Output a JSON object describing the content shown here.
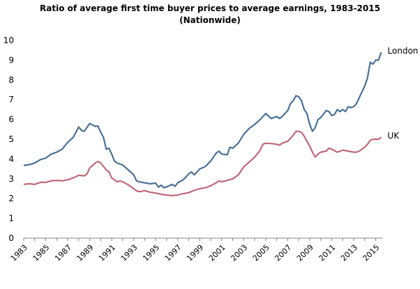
{
  "chart_data": {
    "type": "line",
    "title": "Ratio of average first time buyer prices to average earnings, 1983-2015",
    "subtitle": "(Nationwide)",
    "xlabel": "",
    "ylabel": "",
    "xlim": [
      1983,
      2015.6
    ],
    "ylim": [
      0,
      10
    ],
    "y_ticks": [
      0,
      1,
      2,
      3,
      4,
      5,
      6,
      7,
      8,
      9,
      10
    ],
    "x_ticks": [
      "1983",
      "1985",
      "1987",
      "1989",
      "1991",
      "1993",
      "1995",
      "1997",
      "1999",
      "2001",
      "2003",
      "2005",
      "2007",
      "2009",
      "2011",
      "2013",
      "2015"
    ],
    "grid": false,
    "legend": "inline labels at line ends",
    "series": [
      {
        "name": "London",
        "color": "#4a7196",
        "points": [
          [
            1983.0,
            3.68
          ],
          [
            1983.5,
            3.72
          ],
          [
            1984.0,
            3.8
          ],
          [
            1984.5,
            3.97
          ],
          [
            1985.0,
            4.05
          ],
          [
            1985.5,
            4.25
          ],
          [
            1986.0,
            4.35
          ],
          [
            1986.5,
            4.5
          ],
          [
            1987.0,
            4.85
          ],
          [
            1987.5,
            5.1
          ],
          [
            1988.0,
            5.62
          ],
          [
            1988.25,
            5.45
          ],
          [
            1988.5,
            5.4
          ],
          [
            1989.0,
            5.8
          ],
          [
            1989.5,
            5.65
          ],
          [
            1989.75,
            5.67
          ],
          [
            1990.0,
            5.35
          ],
          [
            1990.25,
            5.1
          ],
          [
            1990.5,
            4.5
          ],
          [
            1990.75,
            4.55
          ],
          [
            1991.0,
            4.25
          ],
          [
            1991.25,
            3.9
          ],
          [
            1991.5,
            3.8
          ],
          [
            1992.0,
            3.7
          ],
          [
            1992.5,
            3.45
          ],
          [
            1993.0,
            3.2
          ],
          [
            1993.25,
            2.9
          ],
          [
            1993.5,
            2.85
          ],
          [
            1994.0,
            2.8
          ],
          [
            1994.5,
            2.75
          ],
          [
            1995.0,
            2.78
          ],
          [
            1995.25,
            2.58
          ],
          [
            1995.5,
            2.68
          ],
          [
            1995.75,
            2.55
          ],
          [
            1996.0,
            2.6
          ],
          [
            1996.5,
            2.72
          ],
          [
            1996.75,
            2.62
          ],
          [
            1997.0,
            2.8
          ],
          [
            1997.5,
            2.95
          ],
          [
            1998.0,
            3.25
          ],
          [
            1998.25,
            3.35
          ],
          [
            1998.5,
            3.2
          ],
          [
            1999.0,
            3.5
          ],
          [
            1999.5,
            3.62
          ],
          [
            2000.0,
            3.9
          ],
          [
            2000.5,
            4.3
          ],
          [
            2000.75,
            4.4
          ],
          [
            2001.0,
            4.25
          ],
          [
            2001.5,
            4.22
          ],
          [
            2001.75,
            4.6
          ],
          [
            2002.0,
            4.55
          ],
          [
            2002.5,
            4.8
          ],
          [
            2003.0,
            5.25
          ],
          [
            2003.5,
            5.55
          ],
          [
            2004.0,
            5.75
          ],
          [
            2004.5,
            6.0
          ],
          [
            2005.0,
            6.3
          ],
          [
            2005.5,
            6.05
          ],
          [
            2006.0,
            6.15
          ],
          [
            2006.25,
            6.05
          ],
          [
            2006.5,
            6.15
          ],
          [
            2007.0,
            6.45
          ],
          [
            2007.25,
            6.8
          ],
          [
            2007.5,
            6.95
          ],
          [
            2007.75,
            7.2
          ],
          [
            2008.0,
            7.15
          ],
          [
            2008.25,
            6.95
          ],
          [
            2008.5,
            6.5
          ],
          [
            2008.75,
            6.3
          ],
          [
            2009.0,
            5.75
          ],
          [
            2009.25,
            5.4
          ],
          [
            2009.5,
            5.6
          ],
          [
            2009.75,
            6.0
          ],
          [
            2010.0,
            6.1
          ],
          [
            2010.5,
            6.45
          ],
          [
            2010.75,
            6.4
          ],
          [
            2011.0,
            6.2
          ],
          [
            2011.25,
            6.25
          ],
          [
            2011.5,
            6.5
          ],
          [
            2011.75,
            6.4
          ],
          [
            2012.0,
            6.5
          ],
          [
            2012.25,
            6.4
          ],
          [
            2012.5,
            6.65
          ],
          [
            2012.75,
            6.6
          ],
          [
            2013.0,
            6.65
          ],
          [
            2013.25,
            6.8
          ],
          [
            2013.5,
            7.1
          ],
          [
            2013.75,
            7.4
          ],
          [
            2014.0,
            7.7
          ],
          [
            2014.25,
            8.1
          ],
          [
            2014.5,
            8.9
          ],
          [
            2014.75,
            8.8
          ],
          [
            2015.0,
            9.0
          ],
          [
            2015.25,
            9.0
          ],
          [
            2015.5,
            9.4
          ]
        ]
      },
      {
        "name": "UK",
        "color": "#c06878",
        "points": [
          [
            1983.0,
            2.72
          ],
          [
            1983.5,
            2.75
          ],
          [
            1984.0,
            2.72
          ],
          [
            1984.5,
            2.82
          ],
          [
            1985.0,
            2.82
          ],
          [
            1985.5,
            2.9
          ],
          [
            1986.0,
            2.92
          ],
          [
            1986.5,
            2.9
          ],
          [
            1987.0,
            2.95
          ],
          [
            1987.5,
            3.05
          ],
          [
            1988.0,
            3.18
          ],
          [
            1988.5,
            3.15
          ],
          [
            1988.75,
            3.25
          ],
          [
            1989.0,
            3.55
          ],
          [
            1989.5,
            3.8
          ],
          [
            1989.75,
            3.88
          ],
          [
            1990.0,
            3.8
          ],
          [
            1990.5,
            3.45
          ],
          [
            1990.75,
            3.35
          ],
          [
            1991.0,
            3.05
          ],
          [
            1991.5,
            2.85
          ],
          [
            1991.75,
            2.9
          ],
          [
            1992.0,
            2.85
          ],
          [
            1992.5,
            2.7
          ],
          [
            1993.0,
            2.5
          ],
          [
            1993.25,
            2.4
          ],
          [
            1993.5,
            2.35
          ],
          [
            1994.0,
            2.4
          ],
          [
            1994.5,
            2.32
          ],
          [
            1995.0,
            2.28
          ],
          [
            1995.25,
            2.25
          ],
          [
            1995.5,
            2.22
          ],
          [
            1996.0,
            2.18
          ],
          [
            1996.5,
            2.15
          ],
          [
            1997.0,
            2.18
          ],
          [
            1997.5,
            2.25
          ],
          [
            1998.0,
            2.3
          ],
          [
            1998.5,
            2.42
          ],
          [
            1999.0,
            2.5
          ],
          [
            1999.5,
            2.55
          ],
          [
            2000.0,
            2.65
          ],
          [
            2000.5,
            2.8
          ],
          [
            2000.75,
            2.9
          ],
          [
            2001.0,
            2.85
          ],
          [
            2001.5,
            2.92
          ],
          [
            2002.0,
            3.0
          ],
          [
            2002.5,
            3.2
          ],
          [
            2003.0,
            3.6
          ],
          [
            2003.5,
            3.85
          ],
          [
            2004.0,
            4.1
          ],
          [
            2004.5,
            4.45
          ],
          [
            2004.75,
            4.75
          ],
          [
            2005.0,
            4.8
          ],
          [
            2005.5,
            4.78
          ],
          [
            2006.0,
            4.75
          ],
          [
            2006.25,
            4.7
          ],
          [
            2006.5,
            4.8
          ],
          [
            2007.0,
            4.9
          ],
          [
            2007.25,
            5.05
          ],
          [
            2007.5,
            5.2
          ],
          [
            2007.75,
            5.4
          ],
          [
            2008.0,
            5.4
          ],
          [
            2008.25,
            5.35
          ],
          [
            2008.5,
            5.15
          ],
          [
            2008.75,
            4.9
          ],
          [
            2009.0,
            4.65
          ],
          [
            2009.25,
            4.35
          ],
          [
            2009.5,
            4.1
          ],
          [
            2009.75,
            4.25
          ],
          [
            2010.0,
            4.35
          ],
          [
            2010.5,
            4.4
          ],
          [
            2010.75,
            4.55
          ],
          [
            2011.0,
            4.5
          ],
          [
            2011.5,
            4.35
          ],
          [
            2012.0,
            4.45
          ],
          [
            2012.5,
            4.4
          ],
          [
            2013.0,
            4.35
          ],
          [
            2013.25,
            4.35
          ],
          [
            2013.5,
            4.4
          ],
          [
            2014.0,
            4.6
          ],
          [
            2014.25,
            4.75
          ],
          [
            2014.5,
            4.95
          ],
          [
            2014.75,
            5.0
          ],
          [
            2015.0,
            5.0
          ],
          [
            2015.25,
            5.0
          ],
          [
            2015.5,
            5.1
          ]
        ]
      }
    ]
  }
}
